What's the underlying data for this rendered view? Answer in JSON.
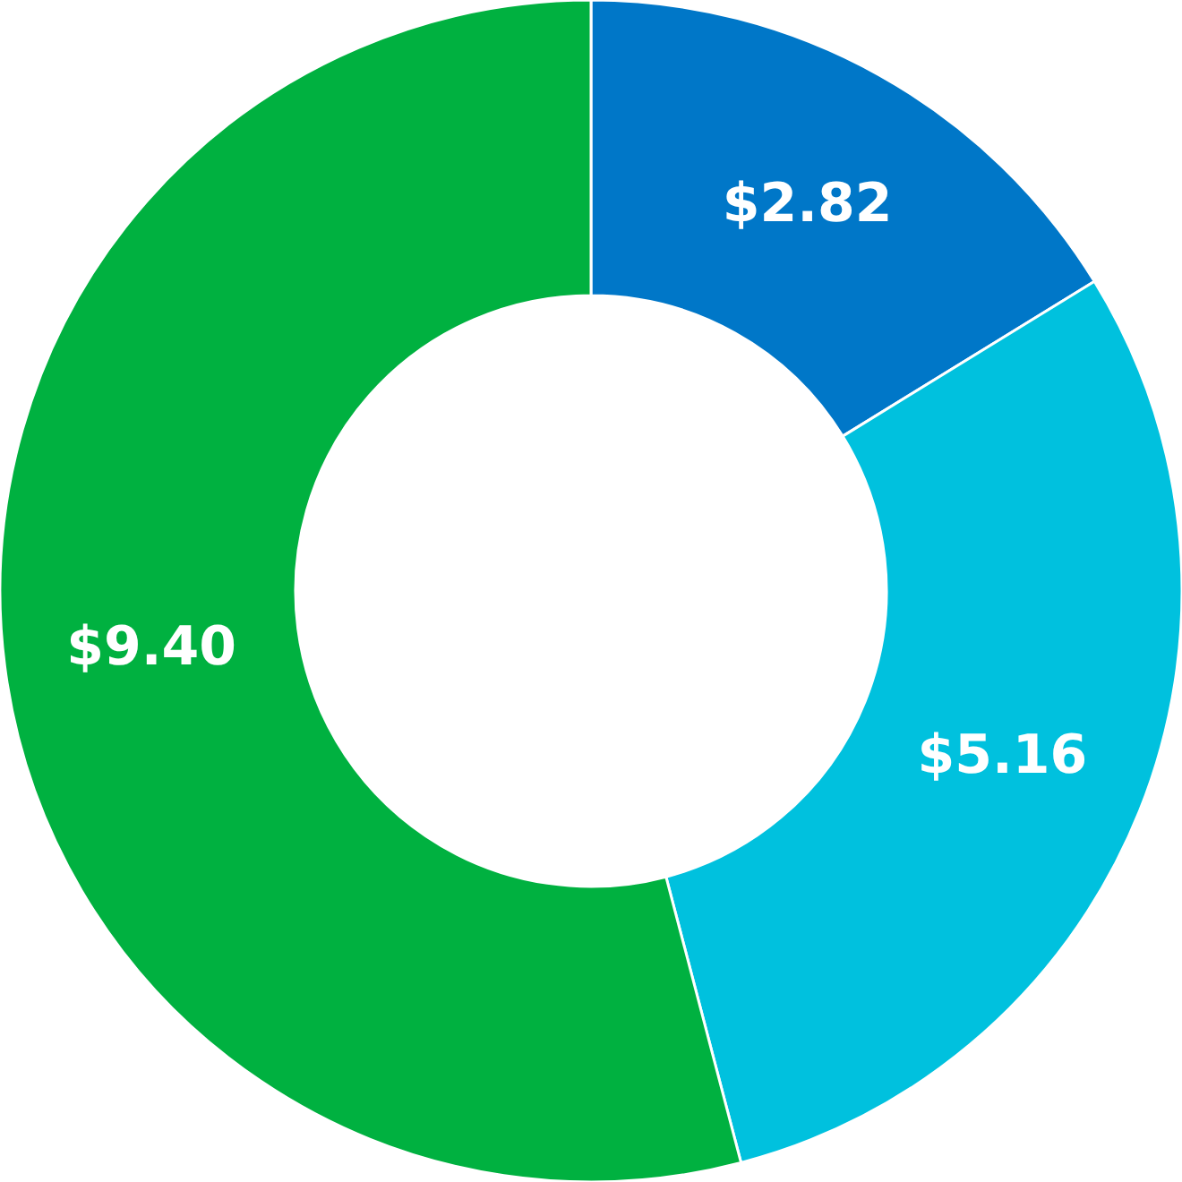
{
  "chart_data": {
    "type": "donut",
    "categories": [
      null,
      null,
      null
    ],
    "values": [
      2.82,
      5.16,
      9.4
    ],
    "colors": [
      "#0077c8",
      "#00c1de",
      "#00b140"
    ],
    "value_labels": [
      "$2.82",
      "$5.16",
      "$9.40"
    ],
    "legend": false
  }
}
